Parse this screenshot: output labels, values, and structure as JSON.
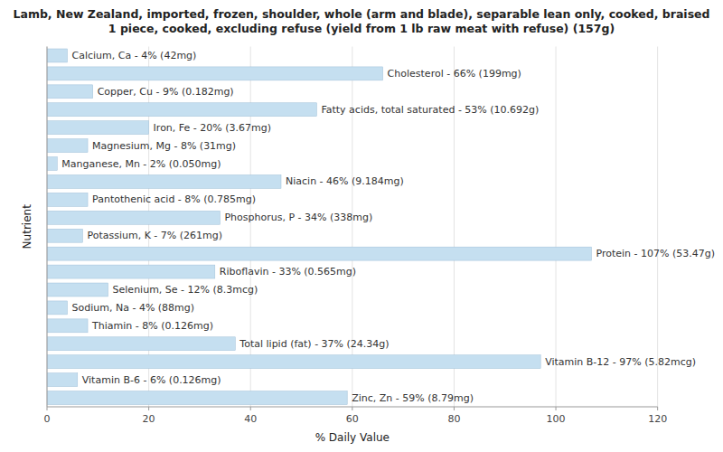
{
  "chart_data": {
    "type": "bar",
    "orientation": "horizontal",
    "title": "Lamb, New Zealand, imported, frozen, shoulder, whole (arm and blade), separable lean only, cooked, braised\n1 piece, cooked, excluding refuse (yield from 1 lb raw meat with refuse) (157g)",
    "xlabel": "% Daily Value",
    "ylabel": "Nutrient",
    "categories": [
      "Calcium, Ca - 4% (42mg)",
      "Cholesterol - 66% (199mg)",
      "Copper, Cu - 9% (0.182mg)",
      "Fatty acids, total saturated - 53% (10.692g)",
      "Iron, Fe - 20% (3.67mg)",
      "Magnesium, Mg - 8% (31mg)",
      "Manganese, Mn - 2% (0.050mg)",
      "Niacin - 46% (9.184mg)",
      "Pantothenic acid - 8% (0.785mg)",
      "Phosphorus, P - 34% (338mg)",
      "Potassium, K - 7% (261mg)",
      "Protein - 107% (53.47g)",
      "Riboflavin - 33% (0.565mg)",
      "Selenium, Se - 12% (8.3mcg)",
      "Sodium, Na - 4% (88mg)",
      "Thiamin - 8% (0.126mg)",
      "Total lipid (fat) - 37% (24.34g)",
      "Vitamin B-12 - 97% (5.82mcg)",
      "Vitamin B-6 - 6% (0.126mg)",
      "Zinc, Zn - 59% (8.79mg)"
    ],
    "values": [
      4,
      66,
      9,
      53,
      20,
      8,
      2,
      46,
      8,
      34,
      7,
      107,
      33,
      12,
      4,
      8,
      37,
      97,
      6,
      59
    ],
    "color": "#c5dff0",
    "xlim": [
      0,
      120
    ],
    "xticks": [
      0,
      20,
      40,
      60,
      80,
      100,
      120
    ],
    "grid": true,
    "tick_labels": "x"
  }
}
